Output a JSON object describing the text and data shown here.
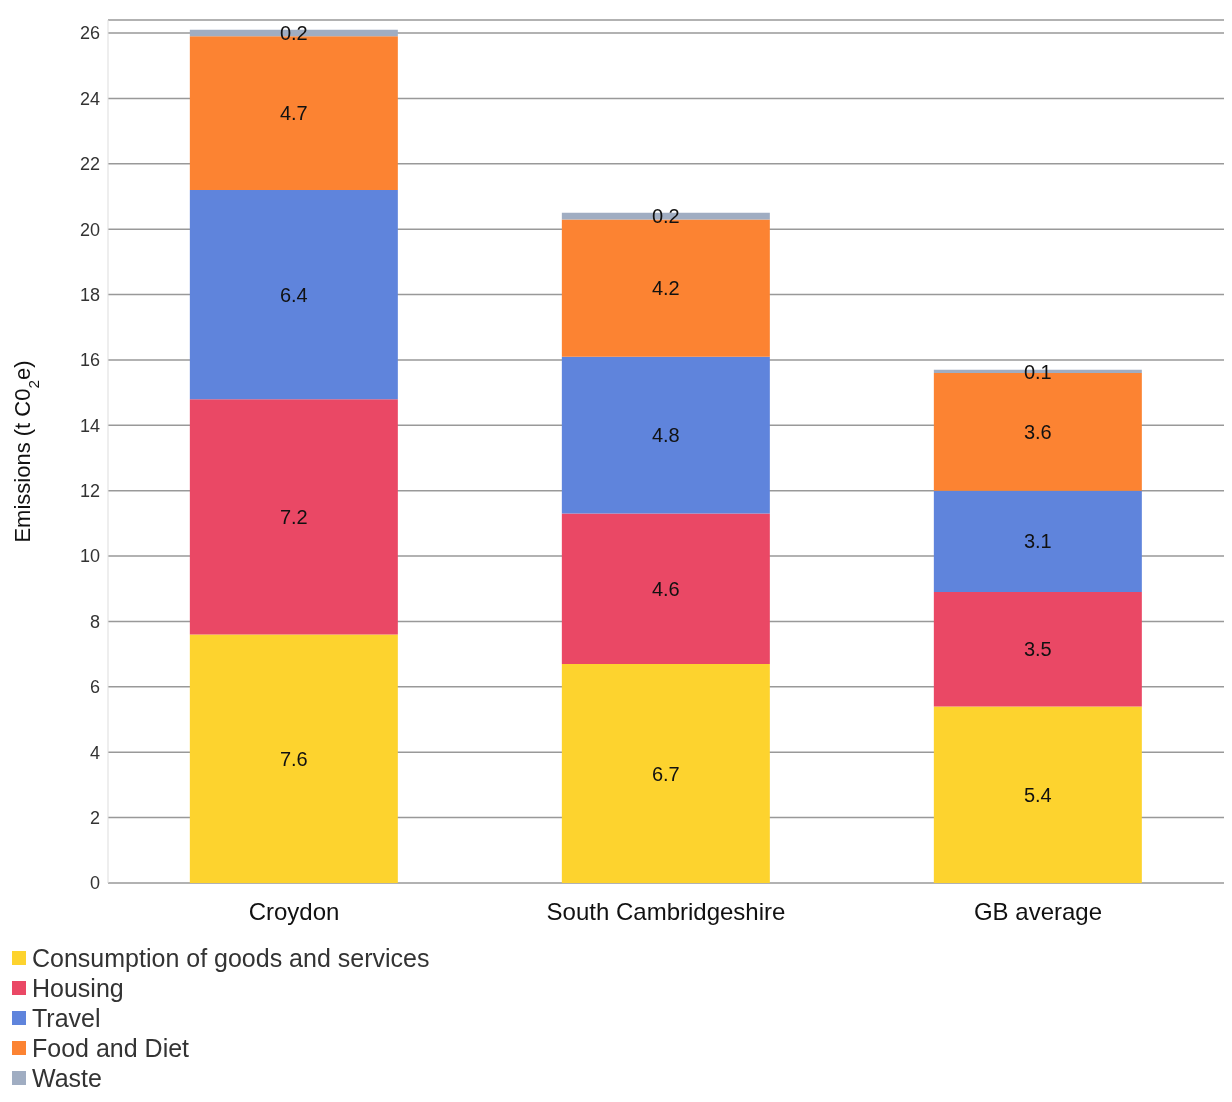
{
  "chart_data": {
    "type": "bar",
    "stacked": true,
    "ylabel": "Emissions (t C0$_{2}$e)",
    "categories": [
      "Croydon",
      "South Cambridgeshire",
      "GB average"
    ],
    "series": [
      {
        "name": "Consumption of goods and services",
        "color": "#fdd32e",
        "values": [
          7.6,
          6.7,
          5.4
        ]
      },
      {
        "name": "Housing",
        "color": "#ea4865",
        "values": [
          7.2,
          4.6,
          3.5
        ]
      },
      {
        "name": "Travel",
        "color": "#5f84dc",
        "values": [
          6.4,
          4.8,
          3.1
        ]
      },
      {
        "name": "Food and Diet",
        "color": "#fc8332",
        "values": [
          4.7,
          4.2,
          3.6
        ]
      },
      {
        "name": "Waste",
        "color": "#a0adc2",
        "values": [
          0.2,
          0.2,
          0.1
        ]
      }
    ],
    "ylim": [
      0,
      26.4
    ],
    "yticks": [
      0,
      2,
      4,
      6,
      8,
      10,
      12,
      14,
      16,
      18,
      20,
      22,
      24,
      26
    ],
    "grid": "y",
    "data_labels": true,
    "legend": "bottom"
  }
}
